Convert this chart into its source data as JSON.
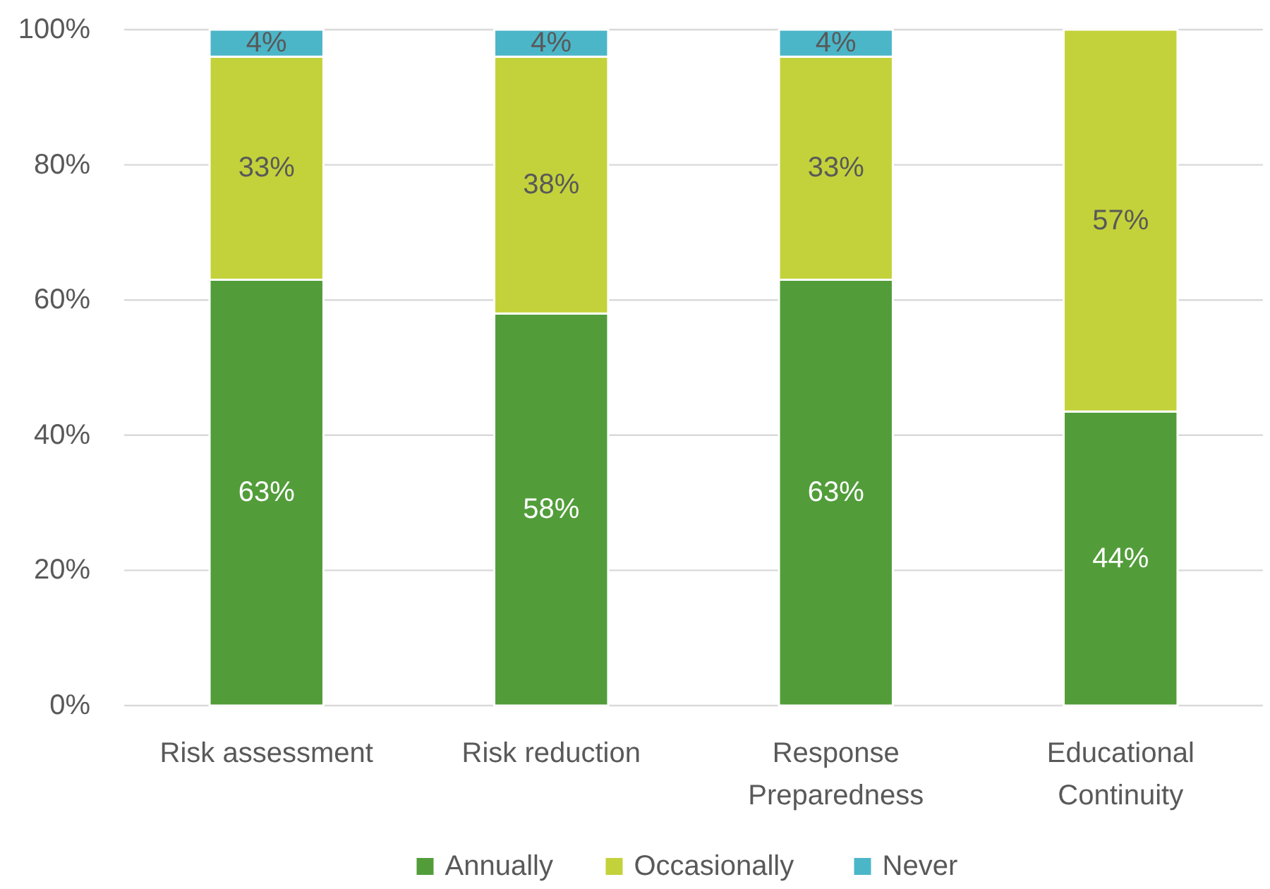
{
  "chart_data": {
    "type": "bar",
    "stacked": true,
    "categories": [
      "Risk assessment",
      "Risk reduction",
      "Response Preparedness",
      "Educational Continuity"
    ],
    "series": [
      {
        "name": "Annually",
        "color": "#529d3a",
        "values": [
          63,
          58,
          63,
          43.5
        ],
        "value_labels": [
          "63%",
          "58%",
          "63%",
          "44%"
        ]
      },
      {
        "name": "Occasionally",
        "color": "#c3d23a",
        "values": [
          33,
          38,
          33,
          56.5
        ],
        "value_labels": [
          "33%",
          "38%",
          "33%",
          "57%"
        ]
      },
      {
        "name": "Never",
        "color": "#4bb6c8",
        "values": [
          4,
          4,
          4,
          null
        ],
        "value_labels": [
          "4%",
          "4%",
          "4%",
          null
        ]
      }
    ],
    "ylim": [
      0,
      100
    ],
    "yticks": [
      {
        "value": 0,
        "label": "0%"
      },
      {
        "value": 20,
        "label": "20%"
      },
      {
        "value": 40,
        "label": "40%"
      },
      {
        "value": 60,
        "label": "60%"
      },
      {
        "value": 80,
        "label": "80%"
      },
      {
        "value": 100,
        "label": "100%"
      }
    ],
    "grid": "y",
    "legend": "bottom"
  }
}
